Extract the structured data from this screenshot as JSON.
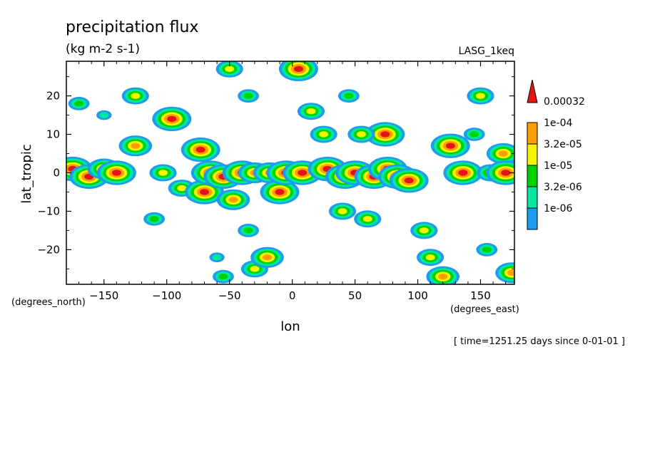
{
  "chart_data": {
    "type": "heatmap",
    "title": "precipitation flux",
    "subtitle": "(kg m-2 s-1)",
    "dataset_label": "LASG_1keq",
    "xlabel": "lon",
    "ylabel": "lat_tropic",
    "x_units_label": "(degrees_east)",
    "y_units_label": "(degrees_north)",
    "footer": "[ time=1251.25 days since 0-01-01 ]",
    "xlim": [
      -180,
      177
    ],
    "ylim": [
      -29,
      29
    ],
    "x_ticks": [
      -150,
      -100,
      -50,
      0,
      50,
      100,
      150
    ],
    "y_ticks": [
      -20,
      -10,
      0,
      10,
      20
    ],
    "x_tick_labels": [
      "−150",
      "−100",
      "−50",
      "0",
      "50",
      "100",
      "150"
    ],
    "y_tick_labels": [
      "−20",
      "−10",
      "0",
      "10",
      "20"
    ],
    "levels": [
      "1e-06",
      "3.2e-06",
      "1e-05",
      "3.2e-05",
      "1e-04",
      "0.00032"
    ],
    "level_colors": [
      "#1e9bf0",
      "#00e8a0",
      "#00d400",
      "#f5f500",
      "#ff9e00",
      "#e41414"
    ],
    "extend": "max",
    "legend_position": "right",
    "grid": false,
    "features": [
      {
        "lon": -175,
        "lat": 1,
        "level": 5
      },
      {
        "lon": -162,
        "lat": -1,
        "level": 5
      },
      {
        "lon": -150,
        "lat": 1,
        "level": 4
      },
      {
        "lon": -140,
        "lat": 0,
        "level": 5
      },
      {
        "lon": -125,
        "lat": 7,
        "level": 4
      },
      {
        "lon": -103,
        "lat": 0,
        "level": 3
      },
      {
        "lon": -96,
        "lat": 14,
        "level": 5
      },
      {
        "lon": -88,
        "lat": -4,
        "level": 3
      },
      {
        "lon": -73,
        "lat": 6,
        "level": 5
      },
      {
        "lon": -70,
        "lat": -5,
        "level": 5
      },
      {
        "lon": -65,
        "lat": 0,
        "level": 5
      },
      {
        "lon": -55,
        "lat": -1,
        "level": 5
      },
      {
        "lon": -47,
        "lat": -7,
        "level": 4
      },
      {
        "lon": -40,
        "lat": 0,
        "level": 5
      },
      {
        "lon": -30,
        "lat": 0,
        "level": 4
      },
      {
        "lon": -18,
        "lat": 0,
        "level": 4
      },
      {
        "lon": -10,
        "lat": -5,
        "level": 5
      },
      {
        "lon": -5,
        "lat": 0,
        "level": 5
      },
      {
        "lon": 8,
        "lat": 0,
        "level": 5
      },
      {
        "lon": 28,
        "lat": 1,
        "level": 5
      },
      {
        "lon": 42,
        "lat": -1,
        "level": 5
      },
      {
        "lon": 50,
        "lat": 0,
        "level": 5
      },
      {
        "lon": 65,
        "lat": -1,
        "level": 5
      },
      {
        "lon": 74,
        "lat": 10,
        "level": 5
      },
      {
        "lon": 76,
        "lat": 1,
        "level": 5
      },
      {
        "lon": 84,
        "lat": -1,
        "level": 5
      },
      {
        "lon": 93,
        "lat": -2,
        "level": 5
      },
      {
        "lon": 126,
        "lat": 7,
        "level": 5
      },
      {
        "lon": 136,
        "lat": 0,
        "level": 5
      },
      {
        "lon": 158,
        "lat": 0,
        "level": 3
      },
      {
        "lon": 168,
        "lat": 5,
        "level": 4
      },
      {
        "lon": 170,
        "lat": 0,
        "level": 5
      },
      {
        "lon": 5,
        "lat": 27,
        "level": 5
      },
      {
        "lon": -50,
        "lat": 27,
        "level": 3
      },
      {
        "lon": -125,
        "lat": 20,
        "level": 3
      },
      {
        "lon": -170,
        "lat": 18,
        "level": 2
      },
      {
        "lon": -35,
        "lat": 20,
        "level": 2
      },
      {
        "lon": 45,
        "lat": 20,
        "level": 2
      },
      {
        "lon": 15,
        "lat": 16,
        "level": 3
      },
      {
        "lon": 55,
        "lat": 10,
        "level": 3
      },
      {
        "lon": 25,
        "lat": 10,
        "level": 3
      },
      {
        "lon": -110,
        "lat": -12,
        "level": 2
      },
      {
        "lon": -35,
        "lat": -15,
        "level": 2
      },
      {
        "lon": 40,
        "lat": -10,
        "level": 3
      },
      {
        "lon": 60,
        "lat": -12,
        "level": 3
      },
      {
        "lon": 105,
        "lat": -15,
        "level": 3
      },
      {
        "lon": 110,
        "lat": -22,
        "level": 3
      },
      {
        "lon": 120,
        "lat": -27,
        "level": 4
      },
      {
        "lon": -30,
        "lat": -25,
        "level": 3
      },
      {
        "lon": -20,
        "lat": -22,
        "level": 4
      },
      {
        "lon": -55,
        "lat": -27,
        "level": 2
      },
      {
        "lon": -60,
        "lat": -22,
        "level": 1
      },
      {
        "lon": 175,
        "lat": -26,
        "level": 4
      },
      {
        "lon": 155,
        "lat": -20,
        "level": 2
      },
      {
        "lon": 150,
        "lat": 20,
        "level": 3
      },
      {
        "lon": 145,
        "lat": 10,
        "level": 2
      },
      {
        "lon": -150,
        "lat": 15,
        "level": 1
      }
    ]
  }
}
